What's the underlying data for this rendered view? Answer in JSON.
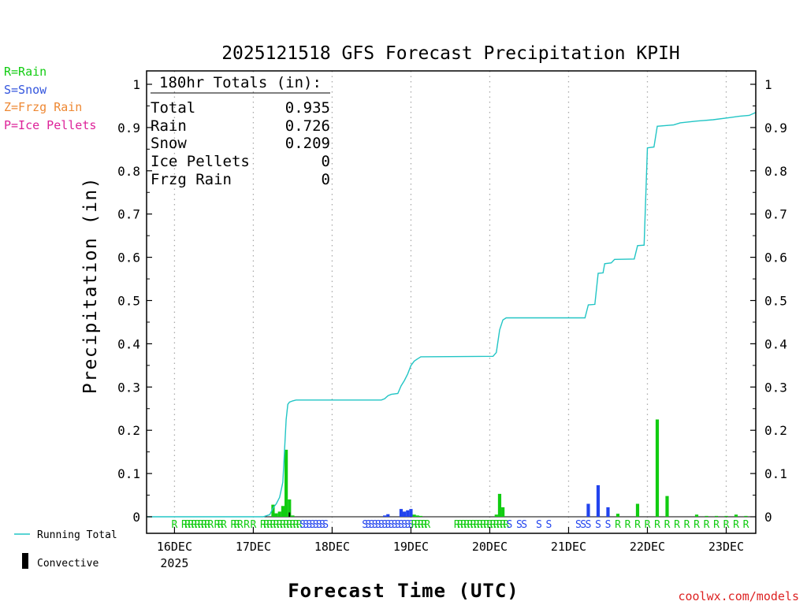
{
  "chart_data": {
    "type": "bar",
    "title": "2025121518 GFS Forecast Precipitation KPIH",
    "xlabel": "Forecast Time (UTC)",
    "ylabel": "Precipitation (in)",
    "credit": "coolwx.com/models",
    "ylim": [
      0,
      1
    ],
    "xlim_hours": [
      -2.5,
      183
    ],
    "y_ticks": [
      "0",
      "0.1",
      "0.2",
      "0.3",
      "0.4",
      "0.5",
      "0.6",
      "0.7",
      "0.8",
      "0.9",
      "1"
    ],
    "day_ticks": [
      {
        "label": "16DEC",
        "hour": 6
      },
      {
        "label": "17DEC",
        "hour": 30
      },
      {
        "label": "18DEC",
        "hour": 54
      },
      {
        "label": "19DEC",
        "hour": 78
      },
      {
        "label": "20DEC",
        "hour": 102
      },
      {
        "label": "21DEC",
        "hour": 126
      },
      {
        "label": "22DEC",
        "hour": 150
      },
      {
        "label": "23DEC",
        "hour": 174
      }
    ],
    "year_label": "2025",
    "legend_types": [
      {
        "text": "R=Rain",
        "color": "#11cc11"
      },
      {
        "text": "S=Snow",
        "color": "#3355dd"
      },
      {
        "text": "Z=Frzg Rain",
        "color": "#ee8833"
      },
      {
        "text": "P=Ice Pellets",
        "color": "#dd2299"
      }
    ],
    "legend_lines": [
      {
        "text": "Running Total",
        "color": "#22c5c5"
      },
      {
        "text": "Convective",
        "color": "#000000"
      }
    ],
    "totals_box": {
      "header": "180hr Totals (in):",
      "rows": [
        {
          "label": "Total",
          "value": "0.935"
        },
        {
          "label": "Rain",
          "value": "0.726"
        },
        {
          "label": "Snow",
          "value": "0.209"
        },
        {
          "label": "Ice Pellets",
          "value": "0"
        },
        {
          "label": "Frzg Rain",
          "value": "0"
        }
      ]
    },
    "colors": {
      "rain": "#11cc11",
      "snow": "#2244ee",
      "total": "#22c5c5",
      "convective": "#000000"
    },
    "series": [
      {
        "name": "Precipitation amount",
        "points": [
          {
            "hour": 36,
            "value": 0.028,
            "ptype": "R"
          },
          {
            "hour": 37,
            "value": 0.008,
            "ptype": "R"
          },
          {
            "hour": 38,
            "value": 0.012,
            "ptype": "R"
          },
          {
            "hour": 39,
            "value": 0.025,
            "ptype": "R"
          },
          {
            "hour": 40,
            "value": 0.155,
            "ptype": "R"
          },
          {
            "hour": 41,
            "value": 0.04,
            "ptype": "R"
          },
          {
            "hour": 42,
            "value": 0.003,
            "ptype": "R"
          },
          {
            "hour": 70,
            "value": 0.003,
            "ptype": "S"
          },
          {
            "hour": 71,
            "value": 0.006,
            "ptype": "S"
          },
          {
            "hour": 75,
            "value": 0.018,
            "ptype": "S"
          },
          {
            "hour": 76,
            "value": 0.012,
            "ptype": "S"
          },
          {
            "hour": 77,
            "value": 0.015,
            "ptype": "S"
          },
          {
            "hour": 78,
            "value": 0.018,
            "ptype": "S"
          },
          {
            "hour": 79,
            "value": 0.005,
            "ptype": "R"
          },
          {
            "hour": 80,
            "value": 0.003,
            "ptype": "R"
          },
          {
            "hour": 81,
            "value": 0.002,
            "ptype": "R"
          },
          {
            "hour": 104,
            "value": 0.005,
            "ptype": "R"
          },
          {
            "hour": 105,
            "value": 0.053,
            "ptype": "R"
          },
          {
            "hour": 106,
            "value": 0.022,
            "ptype": "R"
          },
          {
            "hour": 132,
            "value": 0.03,
            "ptype": "S"
          },
          {
            "hour": 135,
            "value": 0.073,
            "ptype": "S"
          },
          {
            "hour": 138,
            "value": 0.022,
            "ptype": "S"
          },
          {
            "hour": 141,
            "value": 0.007,
            "ptype": "R"
          },
          {
            "hour": 147,
            "value": 0.03,
            "ptype": "R"
          },
          {
            "hour": 153,
            "value": 0.225,
            "ptype": "R"
          },
          {
            "hour": 156,
            "value": 0.048,
            "ptype": "R"
          },
          {
            "hour": 165,
            "value": 0.005,
            "ptype": "R"
          },
          {
            "hour": 168,
            "value": 0.002,
            "ptype": "R"
          },
          {
            "hour": 171,
            "value": 0.002,
            "ptype": "R"
          },
          {
            "hour": 174,
            "value": 0.002,
            "ptype": "R"
          },
          {
            "hour": 177,
            "value": 0.005,
            "ptype": "R"
          },
          {
            "hour": 180,
            "value": 0.002,
            "ptype": "R"
          }
        ]
      },
      {
        "name": "Convective",
        "points": [
          {
            "hour": 41,
            "value": 0.01
          }
        ]
      },
      {
        "name": "Running Total",
        "points": [
          {
            "hour": -2.5,
            "value": 0
          },
          {
            "hour": 33,
            "value": 0
          },
          {
            "hour": 35,
            "value": 0.005
          },
          {
            "hour": 36,
            "value": 0.02
          },
          {
            "hour": 37,
            "value": 0.03
          },
          {
            "hour": 38,
            "value": 0.045
          },
          {
            "hour": 39,
            "value": 0.08
          },
          {
            "hour": 40,
            "value": 0.225
          },
          {
            "hour": 40.5,
            "value": 0.26
          },
          {
            "hour": 41,
            "value": 0.265
          },
          {
            "hour": 42,
            "value": 0.268
          },
          {
            "hour": 43,
            "value": 0.27
          },
          {
            "hour": 69,
            "value": 0.27
          },
          {
            "hour": 70,
            "value": 0.273
          },
          {
            "hour": 71,
            "value": 0.28
          },
          {
            "hour": 72,
            "value": 0.283
          },
          {
            "hour": 74,
            "value": 0.285
          },
          {
            "hour": 75,
            "value": 0.303
          },
          {
            "hour": 76,
            "value": 0.315
          },
          {
            "hour": 77,
            "value": 0.33
          },
          {
            "hour": 78,
            "value": 0.35
          },
          {
            "hour": 79,
            "value": 0.36
          },
          {
            "hour": 80,
            "value": 0.365
          },
          {
            "hour": 81,
            "value": 0.37
          },
          {
            "hour": 103,
            "value": 0.371
          },
          {
            "hour": 104,
            "value": 0.38
          },
          {
            "hour": 105,
            "value": 0.432
          },
          {
            "hour": 106,
            "value": 0.455
          },
          {
            "hour": 107,
            "value": 0.46
          },
          {
            "hour": 131,
            "value": 0.46
          },
          {
            "hour": 132,
            "value": 0.49
          },
          {
            "hour": 134,
            "value": 0.491
          },
          {
            "hour": 135,
            "value": 0.563
          },
          {
            "hour": 136.5,
            "value": 0.564
          },
          {
            "hour": 137,
            "value": 0.585
          },
          {
            "hour": 139,
            "value": 0.587
          },
          {
            "hour": 140,
            "value": 0.595
          },
          {
            "hour": 146,
            "value": 0.596
          },
          {
            "hour": 147,
            "value": 0.627
          },
          {
            "hour": 149,
            "value": 0.628
          },
          {
            "hour": 150,
            "value": 0.853
          },
          {
            "hour": 152,
            "value": 0.855
          },
          {
            "hour": 153,
            "value": 0.903
          },
          {
            "hour": 158,
            "value": 0.906
          },
          {
            "hour": 160,
            "value": 0.911
          },
          {
            "hour": 165,
            "value": 0.915
          },
          {
            "hour": 170,
            "value": 0.918
          },
          {
            "hour": 175,
            "value": 0.923
          },
          {
            "hour": 178,
            "value": 0.926
          },
          {
            "hour": 181,
            "value": 0.928
          },
          {
            "hour": 183,
            "value": 0.935
          }
        ]
      }
    ],
    "type_markers": [
      {
        "hour": 6,
        "ptype": "R"
      },
      {
        "hour": 9,
        "ptype": "R"
      },
      {
        "hour": 10,
        "ptype": "R"
      },
      {
        "hour": 11,
        "ptype": "R"
      },
      {
        "hour": 12,
        "ptype": "R"
      },
      {
        "hour": 13,
        "ptype": "R"
      },
      {
        "hour": 14,
        "ptype": "R"
      },
      {
        "hour": 15,
        "ptype": "R"
      },
      {
        "hour": 16,
        "ptype": "R"
      },
      {
        "hour": 17,
        "ptype": "R"
      },
      {
        "hour": 19,
        "ptype": "R"
      },
      {
        "hour": 20,
        "ptype": "R"
      },
      {
        "hour": 21,
        "ptype": "R"
      },
      {
        "hour": 24,
        "ptype": "R"
      },
      {
        "hour": 25,
        "ptype": "R"
      },
      {
        "hour": 26,
        "ptype": "R"
      },
      {
        "hour": 28,
        "ptype": "R"
      },
      {
        "hour": 30,
        "ptype": "R"
      },
      {
        "hour": 33,
        "ptype": "R"
      },
      {
        "hour": 34,
        "ptype": "R"
      },
      {
        "hour": 35,
        "ptype": "R"
      },
      {
        "hour": 36,
        "ptype": "R"
      },
      {
        "hour": 37,
        "ptype": "R"
      },
      {
        "hour": 38,
        "ptype": "R"
      },
      {
        "hour": 39,
        "ptype": "R"
      },
      {
        "hour": 40,
        "ptype": "R"
      },
      {
        "hour": 41,
        "ptype": "R"
      },
      {
        "hour": 42,
        "ptype": "R"
      },
      {
        "hour": 43,
        "ptype": "R"
      },
      {
        "hour": 44,
        "ptype": "R"
      },
      {
        "hour": 45,
        "ptype": "S"
      },
      {
        "hour": 46,
        "ptype": "S"
      },
      {
        "hour": 47,
        "ptype": "S"
      },
      {
        "hour": 48,
        "ptype": "S"
      },
      {
        "hour": 49,
        "ptype": "S"
      },
      {
        "hour": 50,
        "ptype": "S"
      },
      {
        "hour": 51,
        "ptype": "S"
      },
      {
        "hour": 52,
        "ptype": "S"
      },
      {
        "hour": 64,
        "ptype": "S"
      },
      {
        "hour": 65,
        "ptype": "S"
      },
      {
        "hour": 66,
        "ptype": "S"
      },
      {
        "hour": 67,
        "ptype": "S"
      },
      {
        "hour": 68,
        "ptype": "S"
      },
      {
        "hour": 69,
        "ptype": "S"
      },
      {
        "hour": 70,
        "ptype": "S"
      },
      {
        "hour": 71,
        "ptype": "S"
      },
      {
        "hour": 72,
        "ptype": "S"
      },
      {
        "hour": 73,
        "ptype": "S"
      },
      {
        "hour": 74,
        "ptype": "S"
      },
      {
        "hour": 75,
        "ptype": "S"
      },
      {
        "hour": 76,
        "ptype": "S"
      },
      {
        "hour": 77,
        "ptype": "S"
      },
      {
        "hour": 78,
        "ptype": "S"
      },
      {
        "hour": 79,
        "ptype": "R"
      },
      {
        "hour": 80,
        "ptype": "R"
      },
      {
        "hour": 81,
        "ptype": "R"
      },
      {
        "hour": 82,
        "ptype": "R"
      },
      {
        "hour": 83,
        "ptype": "R"
      },
      {
        "hour": 92,
        "ptype": "R"
      },
      {
        "hour": 93,
        "ptype": "R"
      },
      {
        "hour": 94,
        "ptype": "R"
      },
      {
        "hour": 95,
        "ptype": "R"
      },
      {
        "hour": 96,
        "ptype": "R"
      },
      {
        "hour": 97,
        "ptype": "R"
      },
      {
        "hour": 98,
        "ptype": "R"
      },
      {
        "hour": 99,
        "ptype": "R"
      },
      {
        "hour": 100,
        "ptype": "R"
      },
      {
        "hour": 101,
        "ptype": "R"
      },
      {
        "hour": 102,
        "ptype": "R"
      },
      {
        "hour": 103,
        "ptype": "R"
      },
      {
        "hour": 104,
        "ptype": "R"
      },
      {
        "hour": 105,
        "ptype": "R"
      },
      {
        "hour": 106,
        "ptype": "R"
      },
      {
        "hour": 107,
        "ptype": "R"
      },
      {
        "hour": 108,
        "ptype": "S"
      },
      {
        "hour": 111,
        "ptype": "S"
      },
      {
        "hour": 112.5,
        "ptype": "S"
      },
      {
        "hour": 117,
        "ptype": "S"
      },
      {
        "hour": 120,
        "ptype": "S"
      },
      {
        "hour": 129,
        "ptype": "S"
      },
      {
        "hour": 130.5,
        "ptype": "S"
      },
      {
        "hour": 132,
        "ptype": "S"
      },
      {
        "hour": 135,
        "ptype": "S"
      },
      {
        "hour": 138,
        "ptype": "S"
      },
      {
        "hour": 141,
        "ptype": "R"
      },
      {
        "hour": 144,
        "ptype": "R"
      },
      {
        "hour": 147,
        "ptype": "R"
      },
      {
        "hour": 150,
        "ptype": "R"
      },
      {
        "hour": 153,
        "ptype": "R"
      },
      {
        "hour": 156,
        "ptype": "R"
      },
      {
        "hour": 159,
        "ptype": "R"
      },
      {
        "hour": 162,
        "ptype": "R"
      },
      {
        "hour": 165,
        "ptype": "R"
      },
      {
        "hour": 168,
        "ptype": "R"
      },
      {
        "hour": 171,
        "ptype": "R"
      },
      {
        "hour": 174,
        "ptype": "R"
      },
      {
        "hour": 177,
        "ptype": "R"
      },
      {
        "hour": 180,
        "ptype": "R"
      },
      {
        "hour": 183,
        "ptype": "R"
      }
    ]
  }
}
